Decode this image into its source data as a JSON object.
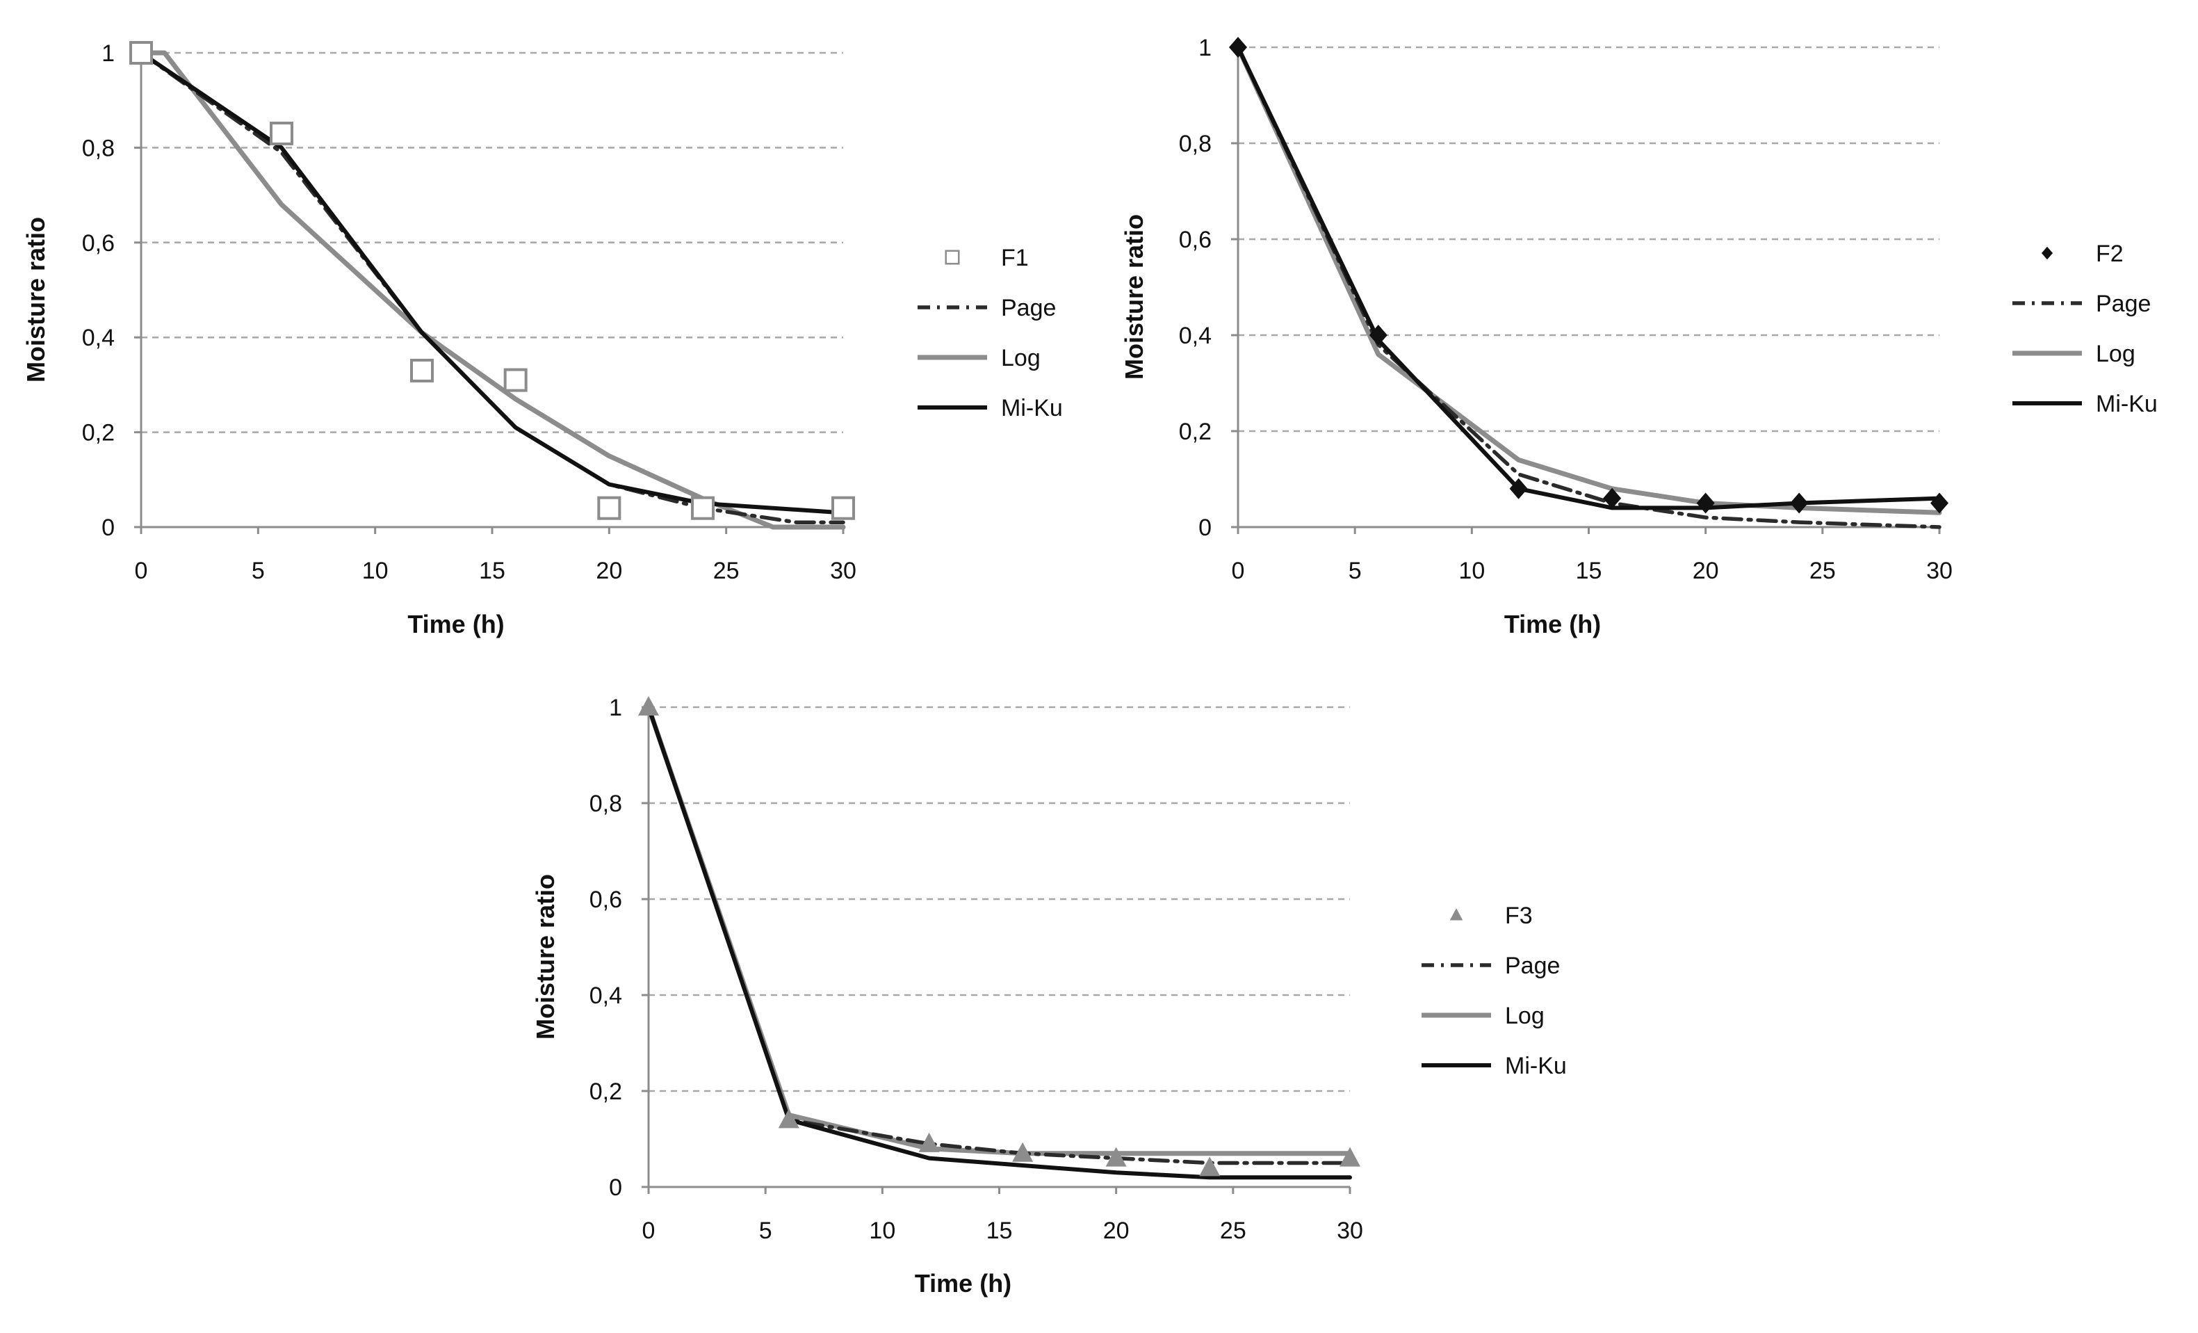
{
  "colors": {
    "page": "#2b2b2b",
    "log": "#8c8c8c",
    "miku": "#111111",
    "grid": "#a8a8a8",
    "axis": "#8c8c8c",
    "f1_marker": "#8c8c8c",
    "f2_marker": "#111111",
    "f3_marker": "#8c8c8c"
  },
  "chart_data": [
    {
      "id": "F1",
      "type": "line",
      "xlabel": "Time (h)",
      "ylabel": "Moisture ratio",
      "xlim": [
        0,
        30
      ],
      "ylim": [
        0,
        1
      ],
      "xticks": [
        0,
        5,
        10,
        15,
        20,
        25,
        30
      ],
      "yticks": [
        0,
        0.2,
        0.4,
        0.6,
        0.8,
        1
      ],
      "ytick_labels": [
        "0",
        "0,2",
        "0,4",
        "0,6",
        "0,8",
        "1"
      ],
      "grid": "horizontal-dashed",
      "legend": "right",
      "observed": {
        "name": "F1",
        "marker": "open-square",
        "x": [
          0,
          6,
          12,
          16,
          20,
          24,
          30
        ],
        "y": [
          1,
          0.83,
          0.33,
          0.31,
          0.04,
          0.04,
          0.04
        ]
      },
      "series": [
        {
          "name": "Page",
          "style": "dash-dot",
          "x": [
            0,
            6,
            12,
            16,
            20,
            24,
            28,
            30
          ],
          "y": [
            1,
            0.79,
            0.41,
            0.21,
            0.09,
            0.04,
            0.01,
            0.01
          ]
        },
        {
          "name": "Log",
          "style": "solid-gray",
          "x": [
            0,
            1,
            6,
            12,
            16,
            20,
            24,
            27,
            30
          ],
          "y": [
            1,
            1,
            0.68,
            0.41,
            0.27,
            0.15,
            0.06,
            0.0,
            0.0
          ]
        },
        {
          "name": "Mi-Ku",
          "style": "solid-black",
          "x": [
            0,
            6,
            12,
            16,
            20,
            24,
            30
          ],
          "y": [
            1,
            0.8,
            0.41,
            0.21,
            0.09,
            0.05,
            0.03
          ]
        }
      ]
    },
    {
      "id": "F2",
      "type": "line",
      "xlabel": "Time (h)",
      "ylabel": "Moisture ratio",
      "xlim": [
        0,
        30
      ],
      "ylim": [
        0,
        1
      ],
      "xticks": [
        0,
        5,
        10,
        15,
        20,
        25,
        30
      ],
      "yticks": [
        0,
        0.2,
        0.4,
        0.6,
        0.8,
        1
      ],
      "ytick_labels": [
        "0",
        "0,2",
        "0,4",
        "0,6",
        "0,8",
        "1"
      ],
      "grid": "horizontal-dashed",
      "legend": "right",
      "observed": {
        "name": "F2",
        "marker": "filled-diamond",
        "x": [
          0,
          6,
          12,
          16,
          20,
          24,
          30
        ],
        "y": [
          1,
          0.4,
          0.08,
          0.06,
          0.05,
          0.05,
          0.05
        ]
      },
      "series": [
        {
          "name": "Page",
          "style": "dash-dot",
          "x": [
            0,
            6,
            12,
            16,
            20,
            24,
            30
          ],
          "y": [
            1,
            0.38,
            0.11,
            0.05,
            0.02,
            0.01,
            0.0
          ]
        },
        {
          "name": "Log",
          "style": "solid-gray",
          "x": [
            0,
            6,
            12,
            16,
            20,
            24,
            30
          ],
          "y": [
            1,
            0.36,
            0.14,
            0.08,
            0.05,
            0.04,
            0.03
          ]
        },
        {
          "name": "Mi-Ku",
          "style": "solid-black",
          "x": [
            0,
            6,
            12,
            16,
            20,
            24,
            30
          ],
          "y": [
            1,
            0.39,
            0.08,
            0.04,
            0.04,
            0.05,
            0.06
          ]
        }
      ]
    },
    {
      "id": "F3",
      "type": "line",
      "xlabel": "Time (h)",
      "ylabel": "Moisture ratio",
      "xlim": [
        0,
        30
      ],
      "ylim": [
        0,
        1
      ],
      "xticks": [
        0,
        5,
        10,
        15,
        20,
        25,
        30
      ],
      "yticks": [
        0,
        0.2,
        0.4,
        0.6,
        0.8,
        1
      ],
      "ytick_labels": [
        "0",
        "0,2",
        "0,4",
        "0,6",
        "0,8",
        "1"
      ],
      "grid": "horizontal-dashed",
      "legend": "right",
      "observed": {
        "name": "F3",
        "marker": "filled-triangle",
        "x": [
          0,
          6,
          12,
          16,
          20,
          24,
          30
        ],
        "y": [
          1,
          0.14,
          0.09,
          0.07,
          0.06,
          0.04,
          0.06
        ]
      },
      "series": [
        {
          "name": "Page",
          "style": "dash-dot",
          "x": [
            0,
            6,
            12,
            16,
            20,
            24,
            30
          ],
          "y": [
            1,
            0.14,
            0.09,
            0.07,
            0.06,
            0.05,
            0.05
          ]
        },
        {
          "name": "Log",
          "style": "solid-gray",
          "x": [
            0,
            6,
            12,
            16,
            20,
            24,
            30
          ],
          "y": [
            1,
            0.15,
            0.08,
            0.07,
            0.07,
            0.07,
            0.07
          ]
        },
        {
          "name": "Mi-Ku",
          "style": "solid-black",
          "x": [
            0,
            6,
            12,
            16,
            20,
            24,
            30
          ],
          "y": [
            1,
            0.14,
            0.06,
            0.045,
            0.03,
            0.02,
            0.02
          ]
        }
      ]
    }
  ]
}
